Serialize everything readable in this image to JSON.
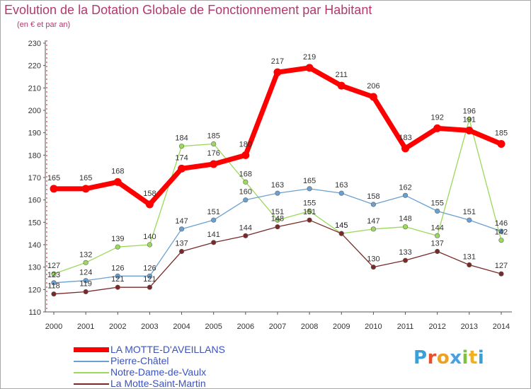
{
  "chart_data": {
    "type": "line",
    "title": "Evolution de la Dotation Globale de Fonctionnement par Habitant",
    "subtitle": "(en € et par an)",
    "xlabel": "",
    "ylabel": "",
    "ylim": [
      110,
      230
    ],
    "yticks": [
      "110",
      "120",
      "130",
      "140",
      "150",
      "160",
      "170",
      "180",
      "190",
      "200",
      "210",
      "220",
      "230"
    ],
    "categories": [
      "2000",
      "2001",
      "2002",
      "2003",
      "2004",
      "2005",
      "2006",
      "2007",
      "2008",
      "2009",
      "2010",
      "2011",
      "2012",
      "2013",
      "2014"
    ],
    "series": [
      {
        "name": "Notre-Dame-de-Vaulx",
        "color": "#9ad95a",
        "values": [
          127,
          132,
          139,
          140,
          184,
          185,
          168,
          151,
          155,
          145,
          147,
          148,
          144,
          196,
          142
        ]
      },
      {
        "name": "Pierre-Châtel",
        "color": "#6aa0d0",
        "values": [
          123,
          124,
          126,
          126,
          147,
          151,
          160,
          163,
          165,
          163,
          158,
          162,
          155,
          151,
          146
        ]
      },
      {
        "name": "La Motte-Saint-Martin",
        "color": "#7a2828",
        "values": [
          118,
          119,
          121,
          121,
          137,
          141,
          144,
          148,
          151,
          145,
          130,
          133,
          137,
          131,
          127
        ]
      },
      {
        "name": "LA MOTTE-D'AVEILLANS",
        "color": "#ff0000",
        "values": [
          165,
          165,
          168,
          158,
          174,
          176,
          180,
          217,
          219,
          211,
          206,
          183,
          192,
          191,
          185
        ]
      }
    ],
    "legend": [
      {
        "label": "LA MOTTE-D'AVEILLANS",
        "color": "#ff0000",
        "text_color": "#3a52c0"
      },
      {
        "label": "Pierre-Châtel",
        "color": "#6aa0d0",
        "text_color": "#3a52c0"
      },
      {
        "label": "Notre-Dame-de-Vaulx",
        "color": "#9ad95a",
        "text_color": "#3a52c0"
      },
      {
        "label": "La Motte-Saint-Martin",
        "color": "#7a2828",
        "text_color": "#3a52c0"
      }
    ],
    "legend_position": "bottom-left",
    "grid": false
  },
  "logo": {
    "letters": [
      "P",
      "r",
      "o",
      "x",
      "i",
      "t",
      "i"
    ],
    "colors": [
      "#3aa0d8",
      "#e8502a",
      "#f0a020",
      "#4aa0e0",
      "#80c040",
      "#f0b020",
      "#3aa0d8"
    ]
  }
}
